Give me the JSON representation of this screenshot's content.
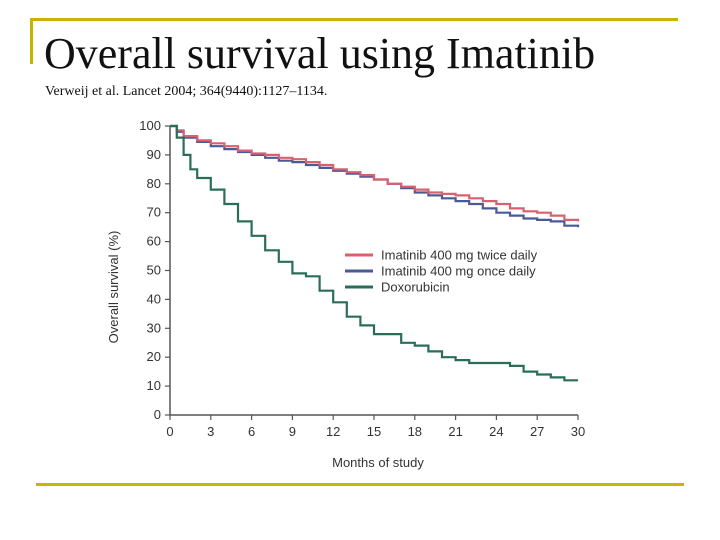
{
  "slide": {
    "title": "Overall survival using Imatinib",
    "citation": "Verweij et al. Lancet 2004; 364(9440):1127–1134."
  },
  "chart_data": {
    "type": "line",
    "title": "",
    "xlabel": "Months of study",
    "ylabel": "Overall survival (%)",
    "xlim": [
      0,
      30
    ],
    "ylim": [
      0,
      100
    ],
    "xticks": [
      0,
      3,
      6,
      9,
      12,
      15,
      18,
      21,
      24,
      27,
      30
    ],
    "yticks": [
      0,
      10,
      20,
      30,
      40,
      50,
      60,
      70,
      80,
      90,
      100
    ],
    "grid": false,
    "legend_position": "center-right",
    "series": [
      {
        "name": "Imatinib 400 mg twice daily",
        "color": "#d9606e",
        "x": [
          0,
          0.5,
          1,
          2,
          3,
          4,
          5,
          6,
          7,
          8,
          9,
          10,
          11,
          12,
          13,
          14,
          15,
          16,
          17,
          18,
          19,
          20,
          21,
          22,
          23,
          24,
          25,
          26,
          27,
          28,
          29,
          30
        ],
        "y": [
          100,
          98.5,
          96.5,
          95,
          94,
          93,
          91.5,
          90.5,
          90,
          89,
          88.5,
          87.5,
          86.5,
          85,
          84,
          83,
          81.5,
          80,
          79,
          78,
          77,
          76.5,
          76,
          75,
          74,
          73,
          71.5,
          70.5,
          70,
          69,
          67.5,
          67
        ]
      },
      {
        "name": "Imatinib 400 mg once daily",
        "color": "#4a5a96",
        "x": [
          0,
          0.5,
          1,
          2,
          3,
          4,
          5,
          6,
          7,
          8,
          9,
          10,
          11,
          12,
          13,
          14,
          15,
          16,
          17,
          18,
          19,
          20,
          21,
          22,
          23,
          24,
          25,
          26,
          27,
          28,
          29,
          30
        ],
        "y": [
          100,
          98,
          96,
          94.5,
          93,
          92,
          91,
          90,
          89,
          88,
          87.5,
          86.5,
          85.5,
          84.5,
          83.5,
          82.5,
          81.5,
          80,
          78.5,
          77,
          76,
          75,
          74,
          73,
          71.5,
          70,
          69,
          68,
          67.5,
          67,
          65.5,
          65
        ]
      },
      {
        "name": "Doxorubicin",
        "color": "#2a6e5a",
        "x": [
          0,
          0.5,
          1,
          1.5,
          2,
          3,
          4,
          5,
          6,
          7,
          8,
          9,
          10,
          11,
          12,
          13,
          14,
          15,
          16,
          17,
          18,
          19,
          20,
          21,
          22,
          23,
          24,
          25,
          26,
          27,
          28,
          29,
          30
        ],
        "y": [
          100,
          96,
          90,
          85,
          82,
          78,
          73,
          67,
          62,
          57,
          53,
          49,
          48,
          43,
          39,
          34,
          31,
          28,
          28,
          25,
          24,
          22,
          20,
          19,
          18,
          18,
          18,
          17,
          15,
          14,
          13,
          12,
          12
        ]
      }
    ]
  }
}
